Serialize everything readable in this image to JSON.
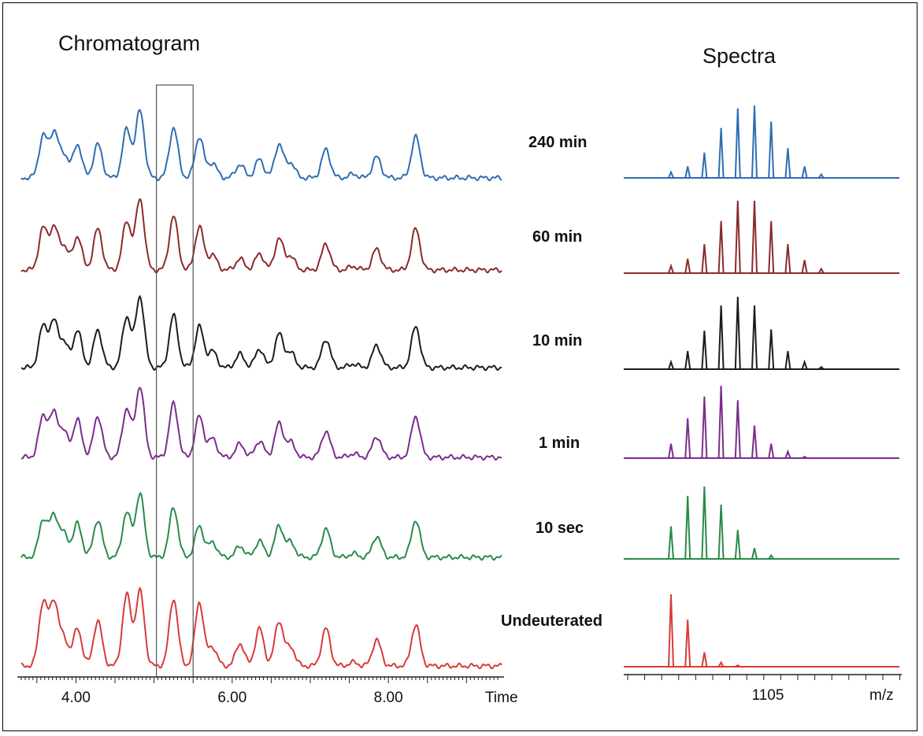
{
  "panels": {
    "chromatogram_title": "Chromatogram",
    "spectra_title": "Spectra"
  },
  "chart_data": [
    {
      "type": "line",
      "title": "Chromatogram",
      "xlabel": "Time",
      "xlim": [
        3.3,
        9.45
      ],
      "xticks": [
        "4.00",
        "6.00",
        "8.00"
      ],
      "highlight_window": [
        5.03,
        5.5
      ],
      "peaks_rt": [
        3.58,
        3.72,
        3.85,
        4.02,
        4.28,
        4.65,
        4.82,
        5.25,
        5.58,
        5.75,
        6.1,
        6.35,
        6.6,
        6.75,
        7.2,
        7.55,
        7.85,
        8.35
      ],
      "series": [
        {
          "label": "240 min",
          "color": "#2e6db4",
          "heights": [
            0.55,
            0.6,
            0.3,
            0.45,
            0.45,
            0.65,
            0.9,
            0.67,
            0.55,
            0.2,
            0.18,
            0.25,
            0.45,
            0.2,
            0.38,
            0.05,
            0.28,
            0.55
          ]
        },
        {
          "label": "60 min",
          "color": "#8b2a2a",
          "heights": [
            0.55,
            0.55,
            0.3,
            0.45,
            0.55,
            0.65,
            0.95,
            0.72,
            0.58,
            0.2,
            0.15,
            0.22,
            0.42,
            0.18,
            0.35,
            0.05,
            0.28,
            0.55
          ]
        },
        {
          "label": "10 min",
          "color": "#1c1c1c",
          "heights": [
            0.55,
            0.6,
            0.32,
            0.5,
            0.5,
            0.68,
            0.95,
            0.7,
            0.55,
            0.22,
            0.18,
            0.25,
            0.45,
            0.2,
            0.38,
            0.05,
            0.3,
            0.55
          ]
        },
        {
          "label": "1 min",
          "color": "#7a2d8c",
          "heights": [
            0.55,
            0.58,
            0.32,
            0.5,
            0.55,
            0.65,
            0.95,
            0.72,
            0.55,
            0.25,
            0.18,
            0.22,
            0.45,
            0.2,
            0.35,
            0.05,
            0.28,
            0.55
          ]
        },
        {
          "label": "10 sec",
          "color": "#2a8a4a",
          "heights": [
            0.5,
            0.55,
            0.3,
            0.45,
            0.5,
            0.6,
            0.85,
            0.67,
            0.42,
            0.2,
            0.15,
            0.22,
            0.42,
            0.2,
            0.38,
            0.05,
            0.28,
            0.5
          ]
        },
        {
          "label": "Undeuterated",
          "color": "#d83a3a",
          "heights": [
            0.85,
            0.85,
            0.35,
            0.5,
            0.6,
            0.95,
            1.0,
            0.9,
            0.85,
            0.25,
            0.3,
            0.5,
            0.6,
            0.25,
            0.5,
            0.05,
            0.35,
            0.55
          ]
        }
      ]
    },
    {
      "type": "bar",
      "title": "Spectra",
      "xlabel": "m/z",
      "xticks": [
        "1105"
      ],
      "x": [
        1100,
        1101,
        1102,
        1103,
        1104,
        1105,
        1106,
        1107,
        1108,
        1109
      ],
      "series": [
        {
          "label": "240 min",
          "color": "#2e6db4",
          "values": [
            0.08,
            0.16,
            0.35,
            0.69,
            0.96,
            1.0,
            0.78,
            0.41,
            0.16,
            0.05
          ]
        },
        {
          "label": "60 min",
          "color": "#8b2a2a",
          "values": [
            0.1,
            0.2,
            0.4,
            0.72,
            1.0,
            1.0,
            0.72,
            0.4,
            0.18,
            0.06
          ]
        },
        {
          "label": "10 min",
          "color": "#1c1c1c",
          "values": [
            0.1,
            0.25,
            0.53,
            0.88,
            1.0,
            0.88,
            0.55,
            0.25,
            0.1,
            0.03
          ]
        },
        {
          "label": "1 min",
          "color": "#7a2d8c",
          "values": [
            0.2,
            0.55,
            0.85,
            1.0,
            0.8,
            0.45,
            0.2,
            0.09,
            0.02,
            0.0
          ]
        },
        {
          "label": "10 sec",
          "color": "#2a8a4a",
          "values": [
            0.45,
            0.87,
            1.0,
            0.75,
            0.4,
            0.15,
            0.05,
            0.0,
            0.0,
            0.0
          ]
        },
        {
          "label": "Undeuterated",
          "color": "#d83a3a",
          "values": [
            1.0,
            0.65,
            0.2,
            0.06,
            0.02,
            0.0,
            0.0,
            0.0,
            0.0,
            0.0
          ]
        }
      ]
    }
  ]
}
